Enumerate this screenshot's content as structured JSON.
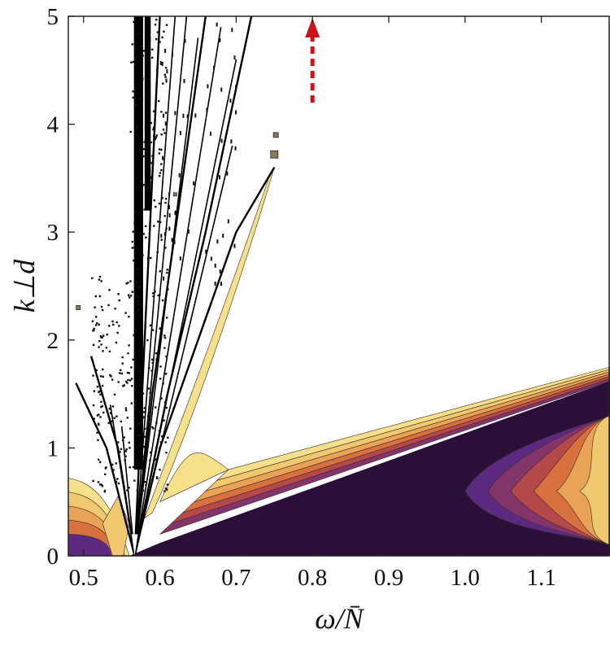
{
  "chart_data": {
    "type": "contour",
    "xlabel": "ω/N̄",
    "ylabel": "k⊥d",
    "xlim": [
      0.48,
      1.19
    ],
    "ylim": [
      0,
      5
    ],
    "xticks": [
      "0.5",
      "0.6",
      "0.7",
      "0.8",
      "0.9",
      "1.0",
      "1.1"
    ],
    "xtick_values": [
      0.5,
      0.6,
      0.7,
      0.8,
      0.9,
      1.0,
      1.1
    ],
    "yticks": [
      "0",
      "1",
      "2",
      "3",
      "4",
      "5"
    ],
    "ytick_values": [
      0,
      1,
      2,
      3,
      4,
      5
    ],
    "grid": false,
    "colors": {
      "levels": [
        "#f7e08a",
        "#f0c86e",
        "#e9a356",
        "#d9713f",
        "#b5494a",
        "#83356a",
        "#5b2a80",
        "#2a0f38"
      ],
      "line": "#000000",
      "arrow": "#c8151b"
    },
    "branch_point": [
      0.567,
      0.0
    ],
    "upper_right_boundary": [
      [
        0.56,
        0.0
      ],
      [
        1.19,
        1.62
      ]
    ],
    "inner_boundary": [
      [
        0.69,
        0.8
      ],
      [
        1.19,
        1.75
      ]
    ],
    "left_lobe_peak": [
      0.48,
      0.72
    ],
    "ridge_curves": [
      [
        [
          0.567,
          0.0
        ],
        [
          0.6,
          1.0
        ],
        [
          0.65,
          2.0
        ],
        [
          0.7,
          3.0
        ],
        [
          0.75,
          3.6
        ]
      ],
      [
        [
          0.567,
          0.0
        ],
        [
          0.61,
          1.5
        ],
        [
          0.66,
          3.0
        ],
        [
          0.72,
          5.0
        ]
      ],
      [
        [
          0.567,
          0.0
        ],
        [
          0.59,
          1.5
        ],
        [
          0.62,
          3.0
        ],
        [
          0.66,
          5.0
        ]
      ],
      [
        [
          0.567,
          0.0
        ],
        [
          0.58,
          2.0
        ],
        [
          0.6,
          5.0
        ]
      ],
      [
        [
          0.567,
          0.0
        ],
        [
          0.53,
          1.0
        ],
        [
          0.49,
          1.6
        ]
      ],
      [
        [
          0.567,
          0.0
        ],
        [
          0.545,
          1.0
        ],
        [
          0.51,
          1.85
        ]
      ]
    ],
    "arrow": {
      "x": 0.8,
      "y_from": 4.2,
      "y_to": 5.0
    }
  }
}
